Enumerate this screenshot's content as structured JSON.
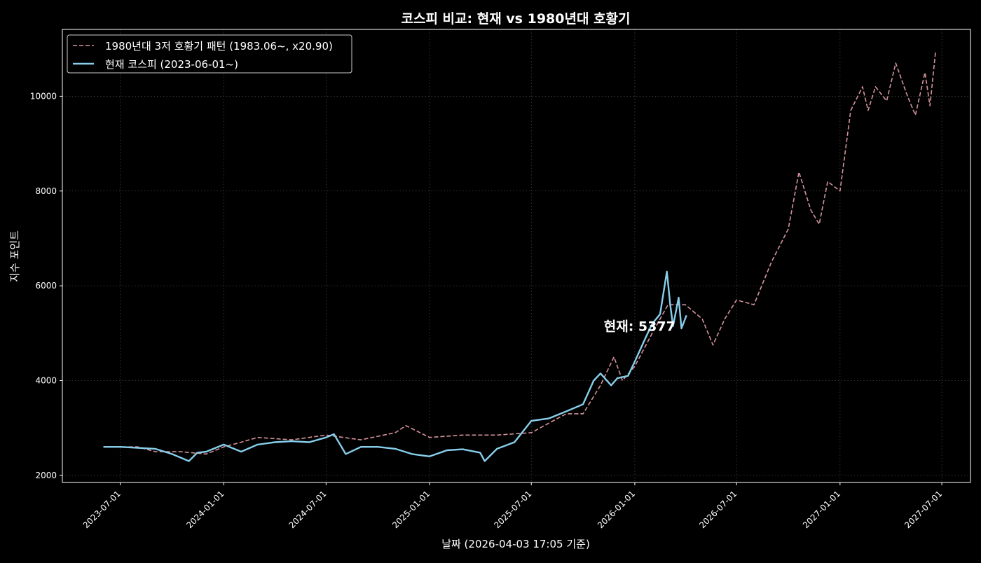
{
  "chart_data": {
    "type": "line",
    "title": "코스피 비교: 현재 vs 1980년대 호황기",
    "xlabel": "날짜 (2026-04-03 17:05 기준)",
    "ylabel": "지수 포인트",
    "xlim": [
      "2023-03-20",
      "2027-08-21"
    ],
    "ylim": [
      1850,
      11410
    ],
    "x_ticks": [
      "2023-07-01",
      "2024-01-01",
      "2024-07-01",
      "2025-01-01",
      "2025-07-01",
      "2026-01-01",
      "2026-07-01",
      "2027-01-01",
      "2027-07-01"
    ],
    "y_ticks": [
      2000,
      4000,
      6000,
      8000,
      10000
    ],
    "grid": true,
    "legend": "top-left",
    "annotation": {
      "text": "현재: 5377",
      "date": "2026-04-03",
      "value": 5377
    },
    "series": [
      {
        "name": "1980년대 3저 호황기 패턴 (1983.06~, x20.90)",
        "color": "#d4939b",
        "style": "dashed",
        "points": [
          [
            "2023-06-01",
            2600
          ],
          [
            "2023-08-01",
            2600
          ],
          [
            "2023-09-01",
            2500
          ],
          [
            "2023-10-15",
            2500
          ],
          [
            "2023-12-01",
            2450
          ],
          [
            "2024-01-01",
            2600
          ],
          [
            "2024-02-01",
            2700
          ],
          [
            "2024-03-01",
            2800
          ],
          [
            "2024-05-01",
            2750
          ],
          [
            "2024-07-01",
            2850
          ],
          [
            "2024-09-01",
            2750
          ],
          [
            "2024-11-01",
            2900
          ],
          [
            "2024-11-20",
            3050
          ],
          [
            "2025-01-01",
            2800
          ],
          [
            "2025-03-01",
            2850
          ],
          [
            "2025-05-01",
            2850
          ],
          [
            "2025-07-01",
            2900
          ],
          [
            "2025-08-01",
            3100
          ],
          [
            "2025-09-01",
            3300
          ],
          [
            "2025-10-01",
            3300
          ],
          [
            "2025-11-01",
            3900
          ],
          [
            "2025-11-25",
            4500
          ],
          [
            "2025-12-10",
            4000
          ],
          [
            "2026-01-01",
            4300
          ],
          [
            "2026-02-01",
            5000
          ],
          [
            "2026-03-01",
            5600
          ],
          [
            "2026-04-01",
            5600
          ],
          [
            "2026-05-01",
            5300
          ],
          [
            "2026-05-20",
            4750
          ],
          [
            "2026-06-10",
            5300
          ],
          [
            "2026-07-01",
            5700
          ],
          [
            "2026-08-01",
            5600
          ],
          [
            "2026-09-01",
            6500
          ],
          [
            "2026-10-01",
            7200
          ],
          [
            "2026-10-20",
            8400
          ],
          [
            "2026-11-10",
            7600
          ],
          [
            "2026-11-25",
            7300
          ],
          [
            "2026-12-10",
            8200
          ],
          [
            "2027-01-01",
            8000
          ],
          [
            "2027-01-20",
            9700
          ],
          [
            "2027-02-10",
            10200
          ],
          [
            "2027-02-20",
            9700
          ],
          [
            "2027-03-05",
            10200
          ],
          [
            "2027-03-25",
            9900
          ],
          [
            "2027-04-10",
            10700
          ],
          [
            "2027-05-01",
            10000
          ],
          [
            "2027-05-15",
            9600
          ],
          [
            "2027-06-01",
            10500
          ],
          [
            "2027-06-10",
            9800
          ],
          [
            "2027-06-20",
            10950
          ]
        ]
      },
      {
        "name": "현재 코스피 (2023-06-01~)",
        "color": "#87ceeb",
        "style": "solid",
        "points": [
          [
            "2023-06-01",
            2600
          ],
          [
            "2023-07-01",
            2600
          ],
          [
            "2023-08-01",
            2580
          ],
          [
            "2023-09-01",
            2560
          ],
          [
            "2023-10-01",
            2450
          ],
          [
            "2023-10-31",
            2300
          ],
          [
            "2023-11-15",
            2480
          ],
          [
            "2023-12-01",
            2500
          ],
          [
            "2024-01-01",
            2650
          ],
          [
            "2024-02-01",
            2500
          ],
          [
            "2024-03-01",
            2650
          ],
          [
            "2024-04-01",
            2700
          ],
          [
            "2024-05-01",
            2720
          ],
          [
            "2024-06-01",
            2700
          ],
          [
            "2024-07-01",
            2800
          ],
          [
            "2024-07-15",
            2870
          ],
          [
            "2024-08-05",
            2450
          ],
          [
            "2024-09-01",
            2600
          ],
          [
            "2024-10-01",
            2600
          ],
          [
            "2024-11-01",
            2560
          ],
          [
            "2024-12-01",
            2450
          ],
          [
            "2025-01-01",
            2400
          ],
          [
            "2025-02-01",
            2530
          ],
          [
            "2025-03-01",
            2550
          ],
          [
            "2025-04-01",
            2480
          ],
          [
            "2025-04-09",
            2300
          ],
          [
            "2025-05-01",
            2560
          ],
          [
            "2025-06-01",
            2700
          ],
          [
            "2025-07-01",
            3150
          ],
          [
            "2025-08-01",
            3200
          ],
          [
            "2025-09-01",
            3350
          ],
          [
            "2025-10-01",
            3500
          ],
          [
            "2025-10-20",
            4000
          ],
          [
            "2025-11-01",
            4150
          ],
          [
            "2025-11-20",
            3900
          ],
          [
            "2025-12-01",
            4050
          ],
          [
            "2025-12-20",
            4100
          ],
          [
            "2026-01-01",
            4400
          ],
          [
            "2026-01-20",
            4900
          ],
          [
            "2026-02-01",
            5200
          ],
          [
            "2026-02-15",
            5400
          ],
          [
            "2026-02-27",
            6300
          ],
          [
            "2026-03-05",
            5600
          ],
          [
            "2026-03-10",
            5150
          ],
          [
            "2026-03-20",
            5750
          ],
          [
            "2026-03-25",
            5100
          ],
          [
            "2026-04-03",
            5377
          ]
        ]
      }
    ]
  }
}
